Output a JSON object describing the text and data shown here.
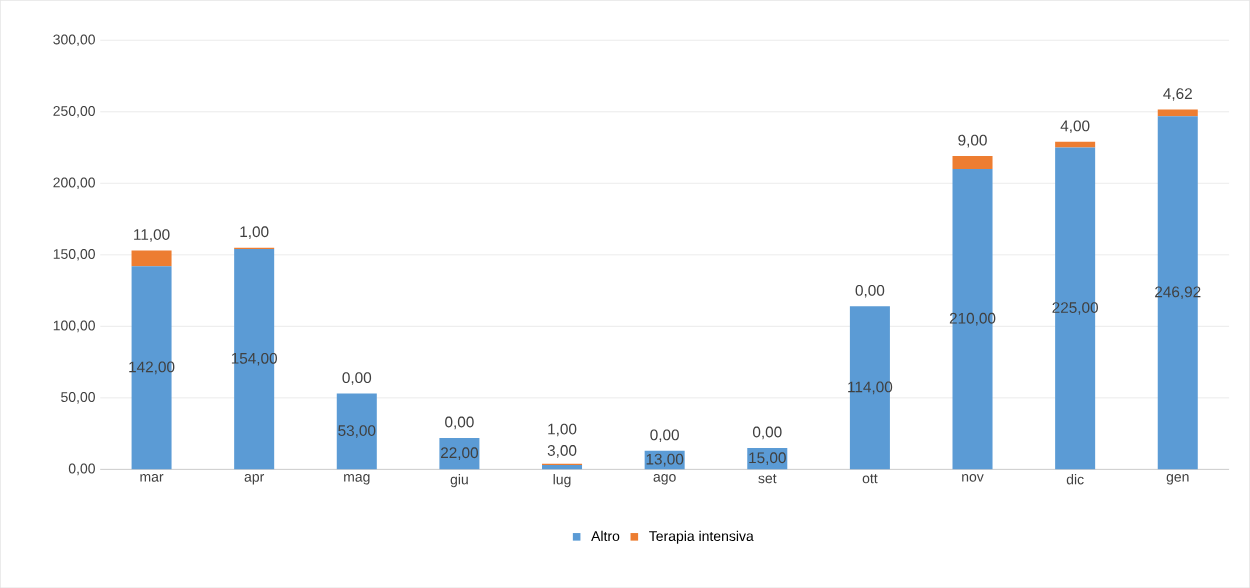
{
  "chart_data": {
    "type": "bar",
    "stacked": true,
    "categories": [
      "mar",
      "apr",
      "mag",
      "giu",
      "lug",
      "ago",
      "set",
      "ott",
      "nov",
      "dic",
      "gen"
    ],
    "series": [
      {
        "name": "Altro",
        "color": "#5b9bd5",
        "values": [
          142,
          154,
          53,
          22,
          3,
          13,
          15,
          114,
          210,
          225,
          246.92
        ],
        "value_labels": [
          "142,00",
          "154,00",
          "53,00",
          "22,00",
          "3,00",
          "13,00",
          "15,00",
          "114,00",
          "210,00",
          "225,00",
          "246,92"
        ]
      },
      {
        "name": "Terapia intensiva",
        "color": "#ed7d31",
        "values": [
          11,
          1,
          0,
          0,
          1,
          0,
          0,
          0,
          9,
          4,
          4.62
        ],
        "value_labels": [
          "11,00",
          "1,00",
          "0,00",
          "0,00",
          "1,00",
          "0,00",
          "0,00",
          "0,00",
          "9,00",
          "4,00",
          "4,62"
        ]
      }
    ],
    "ylim": [
      0,
      300
    ],
    "yticks": [
      {
        "value": 0,
        "label": "0,00"
      },
      {
        "value": 50,
        "label": "50,00"
      },
      {
        "value": 100,
        "label": "100,00"
      },
      {
        "value": 150,
        "label": "150,00"
      },
      {
        "value": 200,
        "label": "200,00"
      },
      {
        "value": 250,
        "label": "250,00"
      },
      {
        "value": 300,
        "label": "300,00"
      }
    ],
    "grid": "y",
    "legend": "bottom"
  }
}
